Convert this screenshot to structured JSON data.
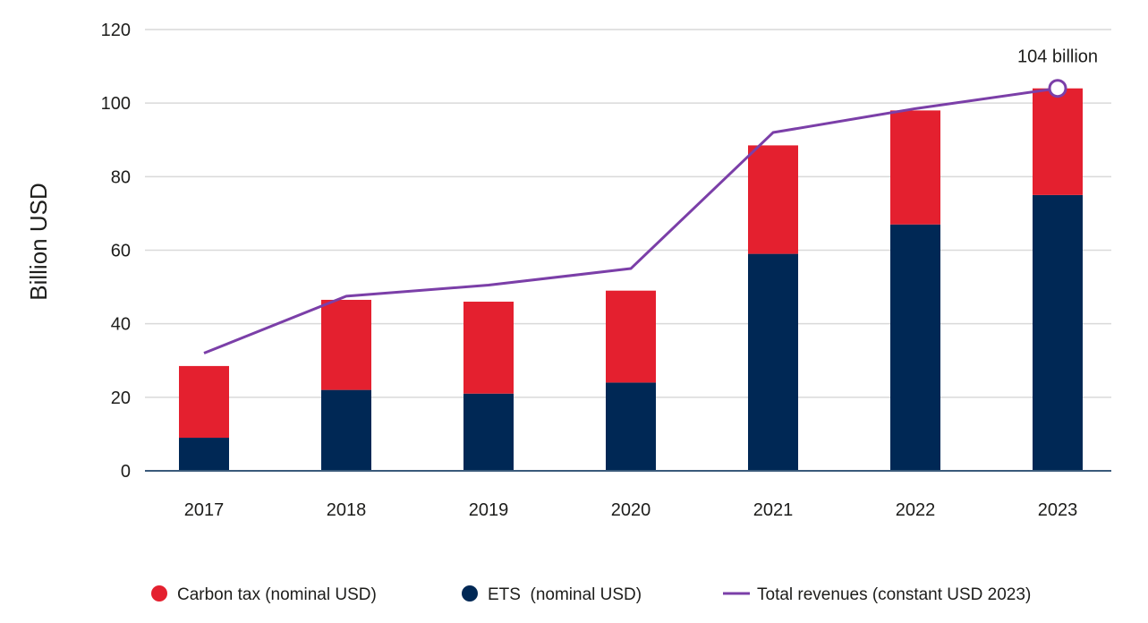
{
  "chart_data": {
    "type": "bar",
    "stacked": true,
    "categories": [
      "2017",
      "2018",
      "2019",
      "2020",
      "2021",
      "2022",
      "2023"
    ],
    "series": [
      {
        "name": "ETS  (nominal USD)",
        "kind": "bar",
        "color": "#002855",
        "legend_marker": "circle",
        "values": [
          9,
          22,
          21,
          24,
          59,
          67,
          75
        ]
      },
      {
        "name": "Carbon tax (nominal USD)",
        "kind": "bar",
        "color": "#e4202f",
        "legend_marker": "circle",
        "values": [
          19.5,
          24.5,
          25,
          25,
          29.5,
          31,
          29
        ]
      },
      {
        "name": "Total revenues (constant USD 2023)",
        "kind": "line",
        "color": "#7b3fa8",
        "legend_marker": "line",
        "values": [
          32,
          47.5,
          50.5,
          55,
          92,
          98.5,
          104
        ]
      }
    ],
    "legend_order": [
      "Carbon tax (nominal USD)",
      "ETS  (nominal USD)",
      "Total revenues (constant USD 2023)"
    ],
    "legend_position": "bottom",
    "title": "",
    "xlabel": "",
    "ylabel": "Billion USD",
    "ylim": [
      0,
      120
    ],
    "yticks": [
      0,
      20,
      40,
      60,
      80,
      100,
      120
    ],
    "grid": true,
    "annotations": [
      {
        "text": "104 billion",
        "category": "2023",
        "value": 104,
        "marker": "open-circle"
      }
    ]
  }
}
